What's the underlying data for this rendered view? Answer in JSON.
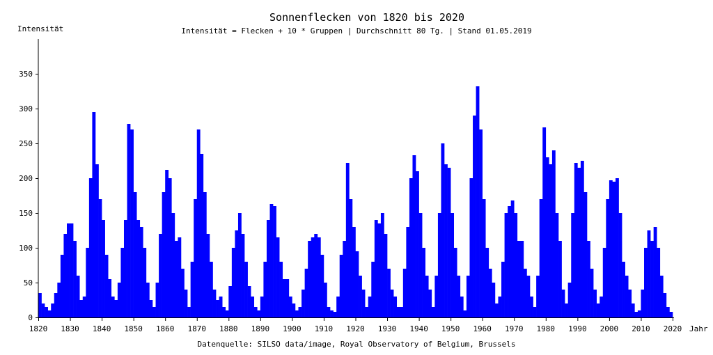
{
  "chart_data": {
    "type": "bar",
    "title": "Sonnenflecken von 1820 bis 2020",
    "subtitle": "Intensität = Flecken + 10 * Gruppen | Durchschnitt 80 Tg. | Stand 01.05.2019",
    "xlabel": "Jahr",
    "ylabel": "Intensität",
    "source": "Datenquelle: SILSO data/image, Royal Observatory of Belgium, Brussels",
    "xlim": [
      1820,
      2020
    ],
    "ylim": [
      0,
      400
    ],
    "xticks": [
      1820,
      1830,
      1840,
      1850,
      1860,
      1870,
      1880,
      1890,
      1900,
      1910,
      1920,
      1930,
      1940,
      1950,
      1960,
      1970,
      1980,
      1990,
      2000,
      2010,
      2020
    ],
    "yticks": [
      0,
      50,
      100,
      150,
      200,
      250,
      300,
      350
    ],
    "grid": false,
    "color": "#0000ff",
    "x_start": 1820,
    "values": [
      35,
      20,
      15,
      10,
      20,
      35,
      50,
      90,
      120,
      135,
      135,
      110,
      60,
      25,
      30,
      100,
      200,
      295,
      220,
      170,
      140,
      90,
      55,
      30,
      25,
      50,
      100,
      140,
      278,
      270,
      180,
      140,
      130,
      100,
      50,
      25,
      15,
      50,
      120,
      180,
      212,
      200,
      150,
      110,
      115,
      70,
      40,
      15,
      80,
      170,
      270,
      235,
      180,
      120,
      80,
      40,
      25,
      30,
      15,
      10,
      45,
      100,
      125,
      150,
      120,
      80,
      45,
      30,
      15,
      10,
      30,
      80,
      140,
      163,
      160,
      115,
      80,
      55,
      55,
      30,
      20,
      10,
      15,
      40,
      70,
      110,
      115,
      120,
      115,
      90,
      50,
      15,
      10,
      8,
      30,
      90,
      110,
      222,
      170,
      130,
      95,
      60,
      40,
      15,
      30,
      80,
      140,
      135,
      150,
      120,
      70,
      40,
      30,
      15,
      15,
      70,
      130,
      200,
      233,
      210,
      150,
      100,
      60,
      40,
      15,
      60,
      150,
      250,
      220,
      215,
      150,
      100,
      60,
      30,
      10,
      60,
      200,
      290,
      332,
      270,
      170,
      100,
      70,
      50,
      20,
      30,
      80,
      150,
      160,
      168,
      150,
      110,
      110,
      70,
      60,
      30,
      15,
      60,
      170,
      273,
      230,
      220,
      240,
      150,
      110,
      40,
      20,
      50,
      150,
      222,
      215,
      225,
      180,
      110,
      70,
      40,
      20,
      30,
      100,
      170,
      197,
      195,
      200,
      150,
      80,
      60,
      40,
      20,
      8,
      10,
      40,
      100,
      125,
      110,
      130,
      100,
      60,
      35,
      15,
      8
    ]
  }
}
